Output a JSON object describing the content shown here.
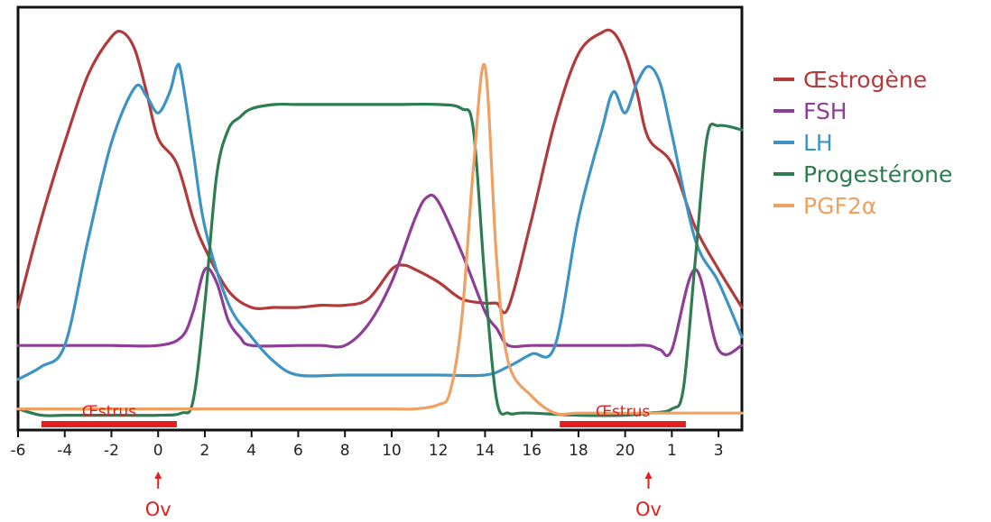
{
  "chart_data": {
    "type": "line",
    "title": "",
    "xlabel": "",
    "ylabel": "",
    "x_ticks": [
      "-6",
      "-4",
      "-2",
      "0",
      "2",
      "4",
      "6",
      "8",
      "10",
      "12",
      "14",
      "16",
      "18",
      "20",
      "1",
      "3"
    ],
    "x_tick_positions": [
      -6,
      -4,
      -2,
      0,
      2,
      4,
      6,
      8,
      10,
      12,
      14,
      16,
      18,
      20,
      22,
      24
    ],
    "xlim": [
      -6,
      25
    ],
    "ylim": [
      0,
      100
    ],
    "grid": false,
    "legend_position": "right",
    "series": [
      {
        "name": "Œstrogène",
        "color": "#b33a3a",
        "x": [
          -6,
          -5,
          -4,
          -3,
          -2,
          -1.5,
          -1,
          -0.5,
          0,
          0.8,
          1.5,
          2,
          3,
          4,
          5,
          6,
          7,
          8,
          9,
          10,
          10.5,
          11,
          12,
          13,
          14,
          14.5,
          15,
          16,
          17,
          18,
          19,
          19.5,
          20,
          20.5,
          21,
          22,
          23,
          24,
          25
        ],
        "y": [
          29,
          50,
          68,
          84,
          93,
          94,
          90,
          80,
          69,
          63,
          50,
          43,
          33,
          29,
          29,
          29,
          29.5,
          29.5,
          31,
          38,
          39,
          38,
          35,
          31,
          30,
          30,
          29,
          50,
          73,
          89,
          94,
          94,
          89,
          80,
          69,
          63,
          48,
          38,
          29
        ]
      },
      {
        "name": "FSH",
        "color": "#8e3e96",
        "x": [
          -6,
          -4,
          -2,
          0,
          1,
          1.5,
          2,
          2.5,
          3,
          3.5,
          4,
          6,
          7,
          8,
          9,
          10,
          11,
          11.5,
          12,
          13,
          14,
          14.5,
          15,
          16,
          18,
          20,
          21,
          21.5,
          22,
          23,
          24,
          25
        ],
        "y": [
          20,
          20,
          20,
          20,
          22,
          28,
          38,
          35,
          26,
          22,
          20,
          20,
          20,
          20,
          25,
          35,
          50,
          55,
          54,
          42,
          28,
          24,
          20,
          20,
          20,
          20,
          20,
          19,
          19,
          38,
          19,
          20
        ]
      },
      {
        "name": "LH",
        "color": "#3d94c4",
        "x": [
          -6,
          -5,
          -4,
          -3,
          -2,
          -1,
          -0.5,
          0,
          0.5,
          0.8,
          1,
          1.5,
          2,
          3,
          4,
          5,
          6,
          8,
          10,
          12,
          14,
          15,
          16,
          17,
          18,
          19,
          19.5,
          20,
          20.5,
          21,
          21.5,
          22,
          23,
          24,
          25
        ],
        "y": [
          12,
          15,
          20,
          45,
          68,
          81,
          79,
          75,
          80,
          86,
          84,
          66,
          48,
          30,
          22,
          16,
          13,
          13,
          13,
          13,
          13,
          15,
          18,
          20,
          50,
          71,
          80,
          75,
          82,
          86,
          82,
          70,
          45,
          35,
          22
        ]
      },
      {
        "name": "Progestérone",
        "color": "#2e7d52",
        "x": [
          -6,
          -5,
          -4,
          -2,
          0,
          1,
          1.5,
          2,
          2.5,
          3,
          3.5,
          4,
          5,
          6,
          8,
          10,
          12,
          13,
          13.5,
          14,
          14.5,
          15,
          15.5,
          16,
          18,
          20,
          21,
          22,
          22.5,
          23,
          23.5,
          24,
          25
        ],
        "y": [
          5,
          3.5,
          3.5,
          3.5,
          3.5,
          4,
          7,
          30,
          60,
          71,
          74,
          76,
          77,
          77,
          77,
          77,
          77,
          76,
          71,
          35,
          7,
          4,
          4,
          4,
          3.5,
          3.5,
          4,
          5,
          10,
          40,
          69,
          72,
          71
        ]
      },
      {
        "name": "PGF2α",
        "color": "#f0a060",
        "x": [
          -6,
          -4,
          -2,
          0,
          2,
          4,
          6,
          8,
          10,
          11,
          12,
          12.5,
          13,
          13.5,
          14,
          14.5,
          15,
          16,
          17,
          18,
          20,
          22,
          24,
          25
        ],
        "y": [
          5,
          5,
          5,
          5,
          5,
          5,
          5,
          5,
          5,
          5,
          6,
          9,
          26,
          62,
          86,
          40,
          16,
          8,
          4,
          4,
          4,
          4,
          4,
          4
        ]
      }
    ],
    "annotations": {
      "estrus": [
        {
          "label": "Œstrus",
          "x_start": -5,
          "x_end": 0.8
        },
        {
          "label": "Œstrus",
          "x_start": 17.2,
          "x_end": 22.6
        }
      ],
      "ovulation": [
        {
          "label": "Ov",
          "x": 0
        },
        {
          "label": "Ov",
          "x": 21
        }
      ],
      "color": "#e02020"
    }
  }
}
